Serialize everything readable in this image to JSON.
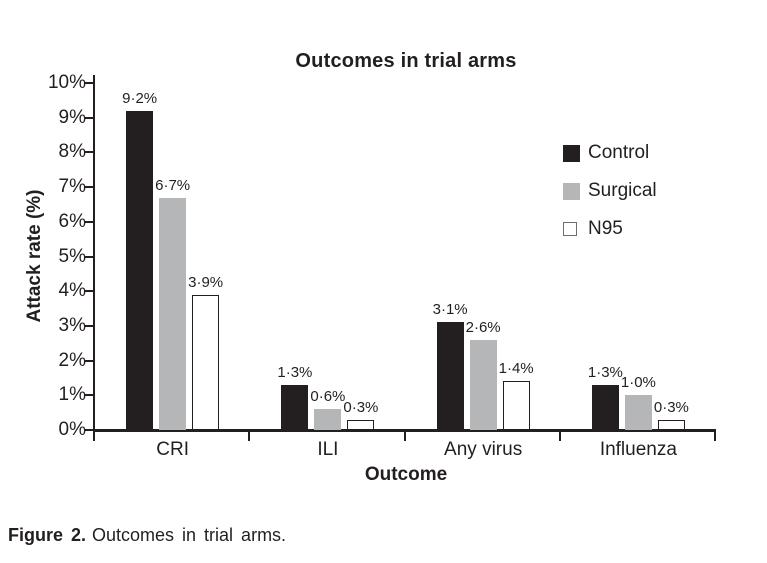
{
  "chart_data": {
    "type": "bar",
    "title": "Outcomes in trial arms",
    "xlabel": "Outcome",
    "ylabel": "Attack rate (%)",
    "categories": [
      "CRI",
      "ILI",
      "Any virus",
      "Influenza"
    ],
    "series": [
      {
        "name": "Control",
        "color": "#231f20",
        "edge": "#231f20",
        "values": [
          9.2,
          1.3,
          3.1,
          1.3
        ],
        "labels": [
          "9·2%",
          "1·3%",
          "3·1%",
          "1·3%"
        ]
      },
      {
        "name": "Surgical",
        "color": "#b4b6b8",
        "edge": "#b4b6b8",
        "values": [
          6.7,
          0.6,
          2.6,
          1.0
        ],
        "labels": [
          "6·7%",
          "0·6%",
          "2·6%",
          "1·0%"
        ]
      },
      {
        "name": "N95",
        "color": "#ffffff",
        "edge": "#231f20",
        "values": [
          3.9,
          0.3,
          1.4,
          0.3
        ],
        "labels": [
          "3·9%",
          "0·3%",
          "1·4%",
          "0·3%"
        ]
      }
    ],
    "ylim": [
      0,
      10
    ],
    "ytick_labels": [
      "0%",
      "1%",
      "2%",
      "3%",
      "4%",
      "5%",
      "6%",
      "7%",
      "8%",
      "9%",
      "10%"
    ],
    "legend_position": "right",
    "grid": false
  },
  "figure": {
    "caption_label": "Figure 2.",
    "caption_text": "Outcomes in trial arms."
  },
  "colors": {
    "ink": "#231f20",
    "control_fill": "#231f20",
    "surgical_fill": "#b4b6b8",
    "n95_fill": "#ffffff",
    "background": "#ffffff"
  }
}
